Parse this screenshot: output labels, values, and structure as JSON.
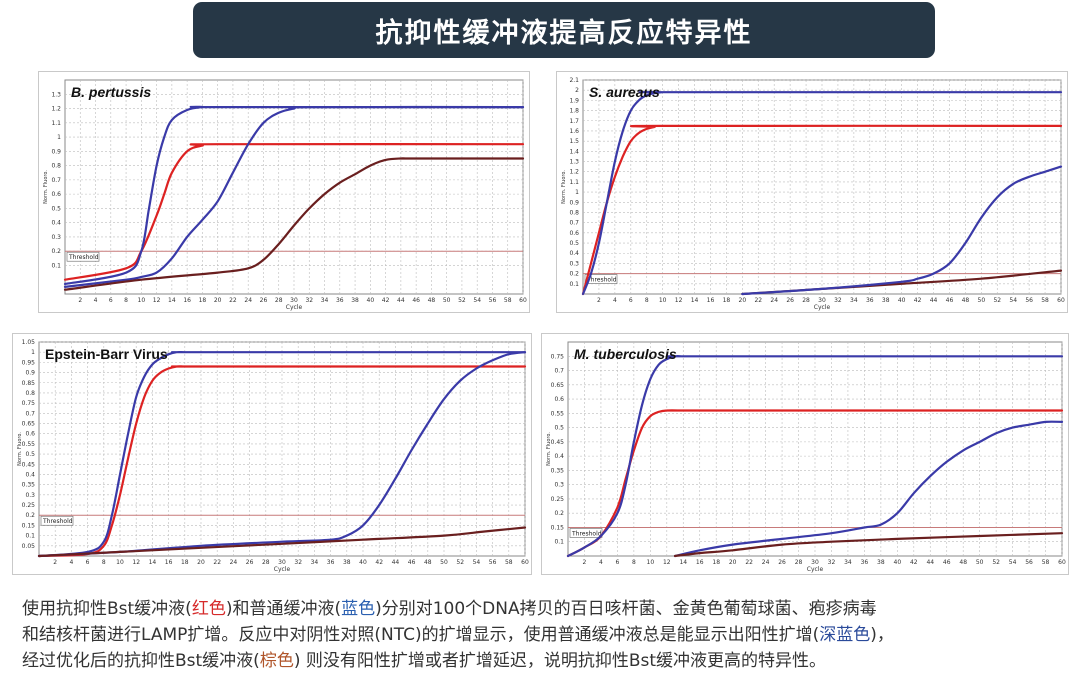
{
  "banner": {
    "title": "抗抑性缓冲液提高反应特异性"
  },
  "colors": {
    "banner_bg": "#263746",
    "red": "#dd2222",
    "blue": "#3a3aa8",
    "brown": "#6a1f1f",
    "threshold": "#c77a7a"
  },
  "chart_data": [
    {
      "type": "line",
      "title": "B. pertussis",
      "xlabel": "Cycle",
      "ylabel": "Norm. Fluoro.",
      "xlim": [
        0,
        60
      ],
      "ylim": [
        -0.1,
        1.4
      ],
      "x_ticks": [
        2,
        4,
        6,
        8,
        10,
        12,
        14,
        16,
        18,
        20,
        22,
        24,
        26,
        28,
        30,
        32,
        34,
        36,
        38,
        40,
        42,
        44,
        46,
        48,
        50,
        52,
        54,
        56,
        58,
        60
      ],
      "y_ticks": [
        0.1,
        0.2,
        0.3,
        0.4,
        0.5,
        0.6,
        0.7,
        0.8,
        0.9,
        1,
        1.1,
        1.2,
        1.3
      ],
      "y_tick_labels": [
        "0.1",
        "0.2",
        "0.3",
        "0.4",
        "0.5",
        "0.6",
        "0.7",
        "0.8",
        "0.9",
        "1",
        "1.1",
        "1.2",
        "1.3"
      ],
      "threshold": {
        "label": "Threshold",
        "value": 0.2
      },
      "series": [
        {
          "color": "red",
          "x": [
            0,
            8,
            10,
            12,
            13,
            14,
            16,
            18,
            20,
            60
          ],
          "y": [
            0,
            0.08,
            0.2,
            0.45,
            0.6,
            0.75,
            0.9,
            0.94,
            0.95,
            0.95
          ]
        },
        {
          "color": "blue",
          "x": [
            0,
            8,
            10,
            11,
            12,
            13,
            14,
            16,
            18,
            20,
            60
          ],
          "y": [
            -0.03,
            0.05,
            0.2,
            0.5,
            0.8,
            1.0,
            1.12,
            1.19,
            1.21,
            1.21,
            1.21
          ]
        },
        {
          "color": "blue",
          "x": [
            0,
            8,
            10,
            12,
            14,
            16,
            18,
            20,
            22,
            24,
            26,
            28,
            30,
            32,
            60
          ],
          "y": [
            -0.05,
            0,
            0.02,
            0.05,
            0.15,
            0.3,
            0.42,
            0.55,
            0.75,
            0.95,
            1.1,
            1.17,
            1.2,
            1.21,
            1.21
          ]
        },
        {
          "color": "brown",
          "x": [
            0,
            10,
            20,
            24,
            26,
            28,
            30,
            32,
            34,
            36,
            38,
            40,
            42,
            44,
            46,
            60
          ],
          "y": [
            -0.07,
            0,
            0.05,
            0.08,
            0.14,
            0.25,
            0.38,
            0.5,
            0.6,
            0.68,
            0.74,
            0.8,
            0.84,
            0.85,
            0.85,
            0.85
          ]
        }
      ]
    },
    {
      "type": "line",
      "title": "S. aureaus",
      "xlabel": "Cycle",
      "ylabel": "Norm. Fluoro.",
      "xlim": [
        0,
        60
      ],
      "ylim": [
        0,
        2.1
      ],
      "x_ticks": [
        2,
        4,
        6,
        8,
        10,
        12,
        14,
        16,
        18,
        20,
        22,
        24,
        26,
        28,
        30,
        32,
        34,
        36,
        38,
        40,
        42,
        44,
        46,
        48,
        50,
        52,
        54,
        56,
        58,
        60
      ],
      "y_ticks": [
        0.1,
        0.2,
        0.3,
        0.4,
        0.5,
        0.6,
        0.7,
        0.8,
        0.9,
        1,
        1.1,
        1.2,
        1.3,
        1.4,
        1.5,
        1.6,
        1.7,
        1.8,
        1.9,
        2,
        2.1
      ],
      "y_tick_labels": [
        "0.1",
        "0.2",
        "0.3",
        "0.4",
        "0.5",
        "0.6",
        "0.7",
        "0.8",
        "0.9",
        "1",
        "1.1",
        "1.2",
        "1.3",
        "1.4",
        "1.5",
        "1.6",
        "1.7",
        "1.8",
        "1.9",
        "2",
        "2.1"
      ],
      "threshold": {
        "label": "Threshold",
        "value": 0.2
      },
      "series": [
        {
          "color": "red",
          "x": [
            0,
            1,
            2,
            3,
            4,
            5,
            6,
            7,
            8,
            9,
            10,
            60
          ],
          "y": [
            0,
            0.3,
            0.6,
            0.9,
            1.15,
            1.35,
            1.5,
            1.58,
            1.62,
            1.64,
            1.65,
            1.65
          ]
        },
        {
          "color": "blue",
          "x": [
            0,
            1,
            2,
            3,
            4,
            5,
            6,
            7,
            8,
            9,
            10,
            11,
            60
          ],
          "y": [
            0,
            0.2,
            0.5,
            0.9,
            1.3,
            1.6,
            1.8,
            1.9,
            1.95,
            1.97,
            1.98,
            1.98,
            1.98
          ]
        },
        {
          "color": "brown",
          "x": [
            20,
            30,
            40,
            50,
            60
          ],
          "y": [
            0,
            0.05,
            0.1,
            0.15,
            0.23
          ]
        },
        {
          "color": "blue",
          "x": [
            20,
            30,
            40,
            42,
            44,
            46,
            48,
            50,
            52,
            54,
            56,
            58,
            60
          ],
          "y": [
            0,
            0.05,
            0.12,
            0.15,
            0.2,
            0.3,
            0.5,
            0.75,
            0.95,
            1.08,
            1.15,
            1.2,
            1.25
          ]
        }
      ]
    },
    {
      "type": "line",
      "title": "Epstein-Barr Virus",
      "xlabel": "Cycle",
      "ylabel": "Norm. Fluoro.",
      "xlim": [
        0,
        60
      ],
      "ylim": [
        0,
        1.05
      ],
      "x_ticks": [
        2,
        4,
        6,
        8,
        10,
        12,
        14,
        16,
        18,
        20,
        22,
        24,
        26,
        28,
        30,
        32,
        34,
        36,
        38,
        40,
        42,
        44,
        46,
        48,
        50,
        52,
        54,
        56,
        58,
        60
      ],
      "y_ticks": [
        0.05,
        0.1,
        0.15,
        0.2,
        0.25,
        0.3,
        0.35,
        0.4,
        0.45,
        0.5,
        0.55,
        0.6,
        0.65,
        0.7,
        0.75,
        0.8,
        0.85,
        0.9,
        0.95,
        1,
        1.05
      ],
      "y_tick_labels": [
        "0.05",
        "0.1",
        "0.15",
        "0.2",
        "0.25",
        "0.3",
        "0.35",
        "0.4",
        "0.45",
        "0.5",
        "0.55",
        "0.6",
        "0.65",
        "0.7",
        "0.75",
        "0.8",
        "0.85",
        "0.9",
        "0.95",
        "1",
        "1.05"
      ],
      "threshold": {
        "label": "Threshold",
        "value": 0.2
      },
      "series": [
        {
          "color": "red",
          "x": [
            0,
            6,
            8,
            9,
            10,
            11,
            12,
            13,
            14,
            15,
            16,
            17,
            18,
            20,
            60
          ],
          "y": [
            0,
            0.01,
            0.05,
            0.15,
            0.3,
            0.48,
            0.65,
            0.78,
            0.86,
            0.9,
            0.92,
            0.93,
            0.93,
            0.93,
            0.93
          ]
        },
        {
          "color": "blue",
          "x": [
            0,
            6,
            8,
            9,
            10,
            11,
            12,
            13,
            14,
            15,
            16,
            17,
            18,
            20,
            60
          ],
          "y": [
            0,
            0.02,
            0.07,
            0.2,
            0.4,
            0.6,
            0.78,
            0.88,
            0.94,
            0.97,
            0.99,
            1.0,
            1.0,
            1.0,
            1.0
          ]
        },
        {
          "color": "blue",
          "x": [
            0,
            10,
            20,
            30,
            36,
            38,
            40,
            42,
            44,
            46,
            48,
            50,
            52,
            54,
            56,
            58,
            60
          ],
          "y": [
            0,
            0.02,
            0.05,
            0.07,
            0.08,
            0.1,
            0.15,
            0.25,
            0.38,
            0.52,
            0.65,
            0.77,
            0.86,
            0.92,
            0.96,
            0.99,
            1.0
          ]
        },
        {
          "color": "brown",
          "x": [
            0,
            10,
            20,
            30,
            40,
            50,
            55,
            60
          ],
          "y": [
            0,
            0.02,
            0.04,
            0.06,
            0.08,
            0.1,
            0.12,
            0.14
          ]
        }
      ]
    },
    {
      "type": "line",
      "title": "M. tuberculosis",
      "xlabel": "Cycle",
      "ylabel": "Norm. Fluoro.",
      "xlim": [
        0,
        60
      ],
      "ylim": [
        0.05,
        0.8
      ],
      "x_ticks": [
        2,
        4,
        6,
        8,
        10,
        12,
        14,
        16,
        18,
        20,
        22,
        24,
        26,
        28,
        30,
        32,
        34,
        36,
        38,
        40,
        42,
        44,
        46,
        48,
        50,
        52,
        54,
        56,
        58,
        60
      ],
      "y_ticks": [
        0.1,
        0.15,
        0.2,
        0.25,
        0.3,
        0.35,
        0.4,
        0.45,
        0.5,
        0.55,
        0.6,
        0.65,
        0.7,
        0.75
      ],
      "y_tick_labels": [
        "0.1",
        "0.15",
        "0.2",
        "0.25",
        "0.3",
        "0.35",
        "0.4",
        "0.45",
        "0.5",
        "0.55",
        "0.6",
        "0.65",
        "0.7",
        "0.75"
      ],
      "threshold": {
        "label": "Threshold",
        "value": 0.15
      },
      "series": [
        {
          "color": "red",
          "x": [
            0,
            2,
            4,
            6,
            7,
            8,
            9,
            10,
            11,
            12,
            14,
            16,
            60
          ],
          "y": [
            0.05,
            0.08,
            0.12,
            0.22,
            0.32,
            0.42,
            0.5,
            0.54,
            0.555,
            0.56,
            0.56,
            0.56,
            0.56
          ]
        },
        {
          "color": "blue",
          "x": [
            0,
            2,
            4,
            6,
            7,
            8,
            9,
            10,
            11,
            12,
            13,
            14,
            16,
            60
          ],
          "y": [
            0.05,
            0.08,
            0.12,
            0.2,
            0.3,
            0.45,
            0.58,
            0.67,
            0.72,
            0.74,
            0.75,
            0.75,
            0.75,
            0.75
          ]
        },
        {
          "color": "blue",
          "x": [
            13,
            16,
            20,
            26,
            32,
            36,
            38,
            40,
            42,
            44,
            46,
            48,
            50,
            52,
            54,
            56,
            58,
            60
          ],
          "y": [
            0.05,
            0.07,
            0.09,
            0.11,
            0.13,
            0.15,
            0.16,
            0.2,
            0.27,
            0.33,
            0.38,
            0.42,
            0.45,
            0.48,
            0.5,
            0.51,
            0.52,
            0.52
          ]
        },
        {
          "color": "brown",
          "x": [
            13,
            16,
            20,
            26,
            32,
            40,
            50,
            60
          ],
          "y": [
            0.05,
            0.06,
            0.07,
            0.09,
            0.1,
            0.11,
            0.12,
            0.13
          ]
        }
      ]
    }
  ],
  "caption": {
    "line1_a": "使用抗抑性Bst缓冲液(",
    "line1_red": "红色",
    "line1_b": ")和普通缓冲液(",
    "line1_blue": "蓝色",
    "line1_c": ")分别对100个DNA拷贝的百日咳杆菌、金黄色葡萄球菌、疱疹病毒",
    "line2_a": "和结核杆菌进行LAMP扩增。反应中对阴性对照(NTC)的扩增显示，使用普通缓冲液总是能显示出阳性扩增(",
    "line2_navy": "深蓝色",
    "line2_b": ")，",
    "line3_a": "经过优化后的抗抑性Bst缓冲液(",
    "line3_brown": "棕色",
    "line3_b": ") 则没有阳性扩增或者扩增延迟，说明抗抑性Bst缓冲液更高的特异性。"
  }
}
